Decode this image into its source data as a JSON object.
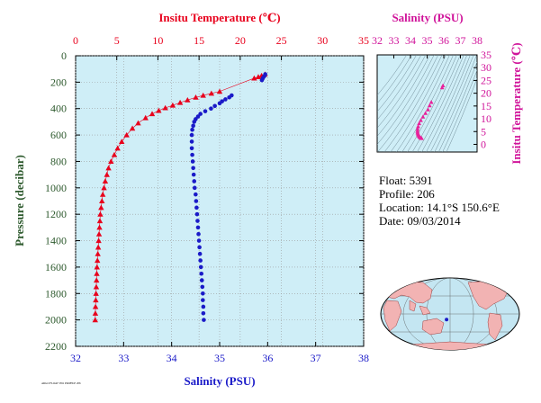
{
  "chart_data": {
    "type": "scatter",
    "title": "",
    "top_axis": {
      "label": "Insitu Temperature (℃)",
      "range": [
        0,
        35
      ],
      "ticks": [
        "0",
        "5",
        "10",
        "15",
        "20",
        "25",
        "30",
        "35"
      ],
      "color": "#e8001c"
    },
    "bottom_axis": {
      "label": "Salinity (PSU)",
      "range": [
        32,
        38
      ],
      "ticks": [
        "32",
        "33",
        "34",
        "35",
        "36",
        "37",
        "38"
      ],
      "color": "#1a1ac8"
    },
    "y_axis": {
      "label": "Pressure (decibar)",
      "range": [
        0,
        2200
      ],
      "inverted": true,
      "ticks": [
        "0",
        "200",
        "400",
        "600",
        "800",
        "1000",
        "1200",
        "1400",
        "1600",
        "1800",
        "2000",
        "2200"
      ],
      "color": "#2e5a2e"
    },
    "grid": true,
    "series": [
      {
        "marker": "triangle",
        "axis": "temperature",
        "color": "#e8001c",
        "points": [
          [
            23.0,
            140
          ],
          [
            22.6,
            150
          ],
          [
            22.2,
            160
          ],
          [
            21.7,
            170
          ],
          [
            17.5,
            270
          ],
          [
            16.5,
            285
          ],
          [
            15.5,
            300
          ],
          [
            14.6,
            315
          ],
          [
            13.6,
            335
          ],
          [
            12.7,
            355
          ],
          [
            11.8,
            375
          ],
          [
            10.9,
            395
          ],
          [
            10.1,
            415
          ],
          [
            9.3,
            440
          ],
          [
            8.5,
            470
          ],
          [
            7.6,
            510
          ],
          [
            6.9,
            550
          ],
          [
            6.2,
            600
          ],
          [
            5.6,
            650
          ],
          [
            5.1,
            700
          ],
          [
            4.7,
            750
          ],
          [
            4.3,
            800
          ],
          [
            4.0,
            850
          ],
          [
            3.8,
            900
          ],
          [
            3.6,
            950
          ],
          [
            3.45,
            1000
          ],
          [
            3.3,
            1050
          ],
          [
            3.2,
            1100
          ],
          [
            3.1,
            1150
          ],
          [
            3.0,
            1200
          ],
          [
            2.95,
            1250
          ],
          [
            2.9,
            1300
          ],
          [
            2.85,
            1350
          ],
          [
            2.8,
            1400
          ],
          [
            2.75,
            1450
          ],
          [
            2.7,
            1500
          ],
          [
            2.65,
            1550
          ],
          [
            2.6,
            1600
          ],
          [
            2.57,
            1650
          ],
          [
            2.54,
            1700
          ],
          [
            2.51,
            1750
          ],
          [
            2.48,
            1800
          ],
          [
            2.45,
            1850
          ],
          [
            2.42,
            1900
          ],
          [
            2.4,
            1950
          ],
          [
            2.38,
            2000
          ]
        ]
      },
      {
        "marker": "circle",
        "axis": "salinity",
        "color": "#1a1ac8",
        "points": [
          [
            35.95,
            140
          ],
          [
            35.93,
            155
          ],
          [
            35.9,
            170
          ],
          [
            35.88,
            185
          ],
          [
            35.25,
            300
          ],
          [
            35.2,
            315
          ],
          [
            35.12,
            330
          ],
          [
            35.05,
            345
          ],
          [
            35.0,
            360
          ],
          [
            34.9,
            380
          ],
          [
            34.82,
            400
          ],
          [
            34.7,
            420
          ],
          [
            34.6,
            440
          ],
          [
            34.55,
            460
          ],
          [
            34.5,
            480
          ],
          [
            34.47,
            500
          ],
          [
            34.45,
            530
          ],
          [
            34.43,
            560
          ],
          [
            34.42,
            600
          ],
          [
            34.42,
            650
          ],
          [
            34.42,
            700
          ],
          [
            34.43,
            750
          ],
          [
            34.44,
            800
          ],
          [
            34.45,
            850
          ],
          [
            34.46,
            900
          ],
          [
            34.47,
            950
          ],
          [
            34.48,
            1000
          ],
          [
            34.5,
            1050
          ],
          [
            34.51,
            1100
          ],
          [
            34.52,
            1150
          ],
          [
            34.53,
            1200
          ],
          [
            34.54,
            1250
          ],
          [
            34.55,
            1300
          ],
          [
            34.56,
            1350
          ],
          [
            34.57,
            1400
          ],
          [
            34.58,
            1450
          ],
          [
            34.59,
            1500
          ],
          [
            34.6,
            1550
          ],
          [
            34.61,
            1600
          ],
          [
            34.62,
            1650
          ],
          [
            34.63,
            1700
          ],
          [
            34.64,
            1750
          ],
          [
            34.65,
            1800
          ],
          [
            34.65,
            1850
          ],
          [
            34.66,
            1900
          ],
          [
            34.66,
            1950
          ],
          [
            34.67,
            2000
          ]
        ]
      }
    ],
    "ts_diagram": {
      "type": "scatter",
      "x_axis": {
        "label": "Salinity (PSU)",
        "range": [
          32,
          38
        ],
        "ticks": [
          "32",
          "33",
          "34",
          "35",
          "36",
          "37",
          "38"
        ]
      },
      "y_axis": {
        "label": "Insitu Temperature (℃)",
        "range": [
          -3,
          35
        ],
        "ticks": [
          "0",
          "5",
          "10",
          "15",
          "20",
          "25",
          "30",
          "35"
        ]
      },
      "color": "#e8209a",
      "points": [
        [
          35.95,
          23.0
        ],
        [
          35.9,
          22.2
        ],
        [
          35.25,
          16.5
        ],
        [
          35.15,
          15.2
        ],
        [
          35.05,
          13.6
        ],
        [
          34.9,
          12.2
        ],
        [
          34.75,
          10.8
        ],
        [
          34.62,
          9.4
        ],
        [
          34.52,
          8.2
        ],
        [
          34.46,
          7.0
        ],
        [
          34.43,
          6.0
        ],
        [
          34.42,
          5.2
        ],
        [
          34.43,
          4.6
        ],
        [
          34.45,
          4.2
        ],
        [
          34.47,
          3.8
        ],
        [
          34.5,
          3.4
        ],
        [
          34.53,
          3.1
        ],
        [
          34.56,
          2.9
        ],
        [
          34.59,
          2.7
        ],
        [
          34.62,
          2.55
        ],
        [
          34.65,
          2.45
        ],
        [
          34.67,
          2.38
        ]
      ]
    }
  },
  "info": {
    "float": "Float:  5391",
    "profile": "Profile:  206",
    "location": "Location:  14.1°S  150.6°E",
    "date": "Date:  09/03/2014"
  },
  "map": {
    "marker_lat": -14.1,
    "marker_lon": 150.6
  },
  "footer_tiny": "ARGO FLOAT 5391 PROFILE 206"
}
